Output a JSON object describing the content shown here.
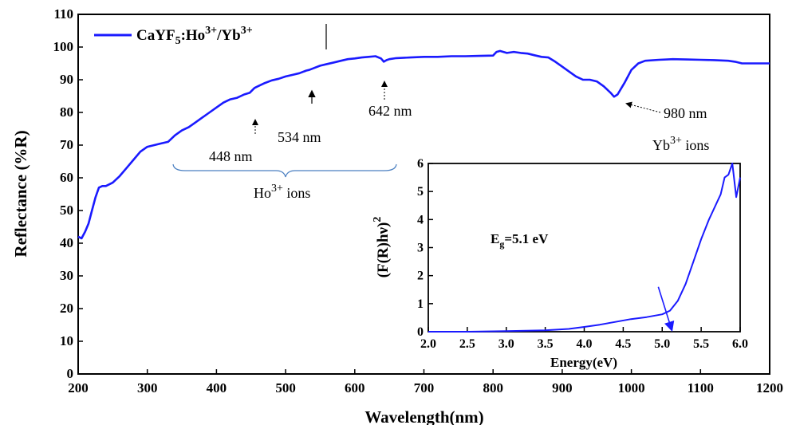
{
  "chart_data": [
    {
      "type": "line",
      "xlabel": "Wavelength(nm)",
      "ylabel": "Reflectance (%R)",
      "xlim": [
        200,
        1200
      ],
      "ylim": [
        0,
        110
      ],
      "xticks": [
        "200",
        "300",
        "400",
        "500",
        "600",
        "700",
        "800",
        "900",
        "1000",
        "1100",
        "1200"
      ],
      "yticks": [
        "0",
        "10",
        "20",
        "30",
        "40",
        "50",
        "60",
        "70",
        "80",
        "90",
        "100",
        "110"
      ],
      "grid": false,
      "legend": {
        "position": "top-left",
        "label_base": "CaYF",
        "label_sub": "5",
        "label_mid": ":Ho",
        "label_sup1": "3+",
        "label_slash": "/Yb",
        "label_sup2": "3+"
      },
      "color": "#1a1aff",
      "series": [
        {
          "name": "CaYF5:Ho3+/Yb3+",
          "x": [
            200,
            205,
            210,
            215,
            220,
            225,
            230,
            235,
            240,
            250,
            260,
            270,
            280,
            290,
            300,
            310,
            320,
            330,
            340,
            350,
            360,
            370,
            380,
            390,
            400,
            410,
            420,
            430,
            440,
            448,
            455,
            460,
            470,
            480,
            490,
            500,
            510,
            520,
            530,
            534,
            540,
            550,
            560,
            570,
            580,
            590,
            600,
            610,
            620,
            630,
            638,
            642,
            646,
            650,
            660,
            680,
            700,
            720,
            740,
            760,
            780,
            800,
            805,
            810,
            820,
            830,
            840,
            850,
            860,
            870,
            880,
            890,
            900,
            910,
            920,
            930,
            940,
            950,
            960,
            970,
            975,
            980,
            990,
            1000,
            1010,
            1020,
            1040,
            1060,
            1080,
            1100,
            1120,
            1140,
            1150,
            1160,
            1180,
            1200
          ],
          "y": [
            42,
            41.5,
            43.5,
            46,
            50,
            54,
            57,
            57.5,
            57.5,
            58.5,
            60.5,
            63,
            65.5,
            68,
            69.5,
            70,
            70.5,
            71,
            73,
            74.5,
            75.5,
            77,
            78.5,
            80,
            81.5,
            83,
            84,
            84.5,
            85.5,
            86,
            87.5,
            88,
            89,
            89.8,
            90.3,
            91,
            91.5,
            92,
            92.8,
            93,
            93.5,
            94.3,
            94.8,
            95.3,
            95.8,
            96.3,
            96.5,
            96.8,
            97,
            97.2,
            96.5,
            95.5,
            96,
            96.3,
            96.6,
            96.8,
            97,
            97,
            97.2,
            97.2,
            97.3,
            97.4,
            98.5,
            98.8,
            98.2,
            98.5,
            98.2,
            98,
            97.5,
            97,
            96.8,
            95.5,
            94,
            92.5,
            91,
            90,
            90,
            89.5,
            88,
            86,
            84.8,
            85.5,
            89,
            93,
            95,
            95.8,
            96.1,
            96.3,
            96.2,
            96.1,
            96,
            95.8,
            95.5,
            95,
            95,
            95
          ]
        }
      ],
      "annotations": {
        "a448": "448 nm",
        "a534": "534 nm",
        "a642": "642 nm",
        "a980": "980 nm",
        "ho_base": "Ho",
        "ho_sup": "3+",
        "ho_rest": " ions",
        "yb_base": "Yb",
        "yb_sup": "3+",
        "yb_rest": " ions"
      }
    },
    {
      "type": "line",
      "xlabel": "Energy(eV)",
      "ylabel": "(F(R)hν)",
      "ylabel_sup": "2",
      "xlim": [
        2.0,
        6.0
      ],
      "ylim": [
        0,
        6
      ],
      "xticks": [
        "2.0",
        "2.5",
        "3.0",
        "3.5",
        "4.0",
        "4.5",
        "5.0",
        "5.5",
        "6.0"
      ],
      "yticks": [
        "0",
        "1",
        "2",
        "3",
        "4",
        "5",
        "6"
      ],
      "grid": false,
      "color": "#1a1aff",
      "annotation": {
        "base": "E",
        "sub": "g",
        "rest": "=5.1 eV"
      },
      "series": [
        {
          "name": "inset",
          "x": [
            2.0,
            2.5,
            3.0,
            3.5,
            3.8,
            4.0,
            4.2,
            4.4,
            4.6,
            4.8,
            5.0,
            5.1,
            5.2,
            5.3,
            5.4,
            5.5,
            5.6,
            5.7,
            5.75,
            5.8,
            5.85,
            5.9,
            5.95,
            6.0
          ],
          "y": [
            0,
            0,
            0.02,
            0.05,
            0.1,
            0.17,
            0.25,
            0.35,
            0.45,
            0.52,
            0.62,
            0.75,
            1.1,
            1.7,
            2.5,
            3.3,
            4.0,
            4.6,
            4.9,
            5.5,
            5.6,
            6.0,
            4.8,
            5.5
          ]
        }
      ],
      "tangent": {
        "x": [
          4.95,
          5.12
        ],
        "y": [
          1.6,
          0
        ]
      }
    }
  ]
}
